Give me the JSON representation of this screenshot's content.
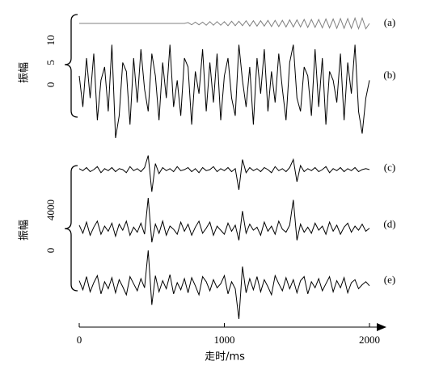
{
  "chart_data": [
    {
      "type": "line",
      "ylabel": "振幅",
      "xlim": [
        0,
        2000
      ],
      "ylim": [
        -8.2,
        15.8
      ],
      "yticks": [
        0,
        5,
        10
      ],
      "x": [
        0,
        25,
        50,
        75,
        100,
        125,
        150,
        175,
        200,
        225,
        250,
        275,
        300,
        325,
        350,
        375,
        400,
        425,
        450,
        475,
        500,
        525,
        550,
        575,
        600,
        625,
        650,
        675,
        700,
        725,
        750,
        775,
        800,
        825,
        850,
        875,
        900,
        925,
        950,
        975,
        1000,
        1025,
        1050,
        1075,
        1100,
        1125,
        1150,
        1175,
        1200,
        1225,
        1250,
        1275,
        1300,
        1325,
        1350,
        1375,
        1400,
        1425,
        1450,
        1475,
        1500,
        1525,
        1550,
        1575,
        1600,
        1625,
        1650,
        1675,
        1700,
        1725,
        1750,
        1775,
        1800,
        1825,
        1850,
        1875,
        1900,
        1925,
        1950,
        1975,
        2000
      ],
      "series": [
        {
          "name": "(a)",
          "color": "#808080",
          "values": [
            13.8,
            13.8,
            13.8,
            13.8,
            13.8,
            13.8,
            13.8,
            13.8,
            13.8,
            13.8,
            13.8,
            13.8,
            13.8,
            13.8,
            13.8,
            13.8,
            13.8,
            13.8,
            13.8,
            13.8,
            13.8,
            13.8,
            13.8,
            13.8,
            13.8,
            13.8,
            13.8,
            13.8,
            13.8,
            13.8,
            14.0,
            13.5,
            14.1,
            13.5,
            14.1,
            13.4,
            14.2,
            13.4,
            14.2,
            13.4,
            14.2,
            13.3,
            14.3,
            13.3,
            14.3,
            13.3,
            14.4,
            13.2,
            14.4,
            13.2,
            14.4,
            13.2,
            14.5,
            13.1,
            14.5,
            13.1,
            14.5,
            13.0,
            14.6,
            13.0,
            14.6,
            13.0,
            14.7,
            12.9,
            14.7,
            12.9,
            14.7,
            12.8,
            14.8,
            12.8,
            14.8,
            12.7,
            14.9,
            12.7,
            14.9,
            12.7,
            15.0,
            12.6,
            15.0,
            12.6,
            13.8
          ]
        },
        {
          "name": "(b)",
          "color": "#000000",
          "values": [
            2,
            -5,
            6,
            -3,
            7,
            -8,
            1,
            4,
            -6,
            9,
            -12,
            -7,
            5,
            3,
            -9,
            6,
            -4,
            8,
            -1,
            -6,
            7,
            2,
            -8,
            5,
            -3,
            9,
            -5,
            1,
            -7,
            6,
            4,
            -9,
            3,
            -2,
            8,
            -6,
            5,
            -4,
            7,
            -8,
            2,
            6,
            -3,
            -7,
            9,
            1,
            -5,
            4,
            -9,
            6,
            -2,
            8,
            -6,
            3,
            -4,
            7,
            -1,
            -8,
            5,
            9,
            -3,
            -6,
            4,
            2,
            -7,
            8,
            -5,
            6,
            -9,
            3,
            1,
            -4,
            7,
            -8,
            5,
            -2,
            9,
            -6,
            -11,
            -3,
            1
          ]
        }
      ]
    },
    {
      "type": "line",
      "ylabel": "振幅",
      "xlabel": "走时/ms",
      "xlim": [
        0,
        2000
      ],
      "xticks": [
        0,
        1000,
        2000
      ],
      "ylim": [
        -7200,
        9600
      ],
      "yticks": [
        0,
        4000
      ],
      "x": [
        0,
        25,
        50,
        75,
        100,
        125,
        150,
        175,
        200,
        225,
        250,
        275,
        300,
        325,
        350,
        375,
        400,
        425,
        450,
        475,
        500,
        525,
        550,
        575,
        600,
        625,
        650,
        675,
        700,
        725,
        750,
        775,
        800,
        825,
        850,
        875,
        900,
        925,
        950,
        975,
        1000,
        1025,
        1050,
        1075,
        1100,
        1125,
        1150,
        1175,
        1200,
        1225,
        1250,
        1275,
        1300,
        1325,
        1350,
        1375,
        1400,
        1425,
        1450,
        1475,
        1500,
        1525,
        1550,
        1575,
        1600,
        1625,
        1650,
        1675,
        1700,
        1725,
        1750,
        1775,
        1800,
        1825,
        1850,
        1875,
        1900,
        1925,
        1950,
        1975,
        2000
      ],
      "series": [
        {
          "name": "(c)",
          "color": "#000000",
          "values": [
            8100,
            7900,
            8200,
            7800,
            8000,
            8300,
            7700,
            8100,
            7900,
            8200,
            7800,
            8100,
            8000,
            7700,
            8300,
            7900,
            8100,
            7800,
            8200,
            9400,
            5800,
            8600,
            7600,
            8200,
            7900,
            8100,
            7800,
            8300,
            7900,
            8000,
            8200,
            7800,
            8100,
            7700,
            8200,
            7900,
            8000,
            8300,
            7800,
            8100,
            7900,
            8200,
            7800,
            8100,
            6000,
            9000,
            7700,
            8200,
            7900,
            8100,
            7800,
            8200,
            8000,
            7700,
            8300,
            7900,
            8100,
            7800,
            8200,
            9000,
            6800,
            8400,
            7800,
            8100,
            7900,
            8200,
            7800,
            8000,
            8300,
            7700,
            8100,
            7900,
            8200,
            7800,
            8100,
            7900,
            8200,
            7800,
            8000,
            8100,
            8000
          ]
        },
        {
          "name": "(d)",
          "color": "#000000",
          "values": [
            2500,
            1700,
            2800,
            1500,
            2300,
            2900,
            1600,
            2400,
            1900,
            2700,
            1400,
            2600,
            2000,
            2900,
            1500,
            2300,
            1800,
            2700,
            1600,
            5200,
            800,
            2600,
            1700,
            2900,
            1500,
            2400,
            2100,
            1600,
            2800,
            1900,
            2600,
            1500,
            2300,
            2900,
            1700,
            2200,
            2800,
            1500,
            2400,
            2000,
            1600,
            2700,
            1900,
            2500,
            1000,
            3900,
            1700,
            2600,
            2000,
            2300,
            1500,
            2800,
            1900,
            2400,
            1600,
            2900,
            2100,
            1800,
            2500,
            5000,
            1000,
            2600,
            1800,
            2300,
            1700,
            2700,
            2000,
            2400,
            1600,
            2800,
            1900,
            2500,
            1600,
            2300,
            2700,
            1800,
            2400,
            2000,
            2600,
            1900,
            2200
          ]
        },
        {
          "name": "(e)",
          "color": "#000000",
          "values": [
            -3000,
            -3900,
            -2600,
            -4100,
            -3200,
            -2500,
            -4300,
            -3100,
            -3800,
            -2700,
            -4200,
            -2900,
            -3600,
            -4400,
            -2600,
            -3300,
            -4000,
            -2800,
            -3700,
            0,
            -5400,
            -2500,
            -4100,
            -3000,
            -3800,
            -2400,
            -4300,
            -3200,
            -3900,
            -2800,
            -4200,
            -2700,
            -3500,
            -4400,
            -2600,
            -3100,
            -4000,
            -2900,
            -3700,
            -3300,
            -2500,
            -4300,
            -3100,
            -3800,
            -6800,
            -1600,
            -4200,
            -2800,
            -3900,
            -2600,
            -4100,
            -2900,
            -3600,
            -4400,
            -2500,
            -3300,
            -4000,
            -2700,
            -3800,
            -2900,
            -4200,
            -3000,
            -2600,
            -4300,
            -3100,
            -3700,
            -2800,
            -4000,
            -3300,
            -2600,
            -4100,
            -3000,
            -3700,
            -2700,
            -4200,
            -3200,
            -2900,
            -3800,
            -3400,
            -3100,
            -3500
          ]
        }
      ]
    }
  ]
}
